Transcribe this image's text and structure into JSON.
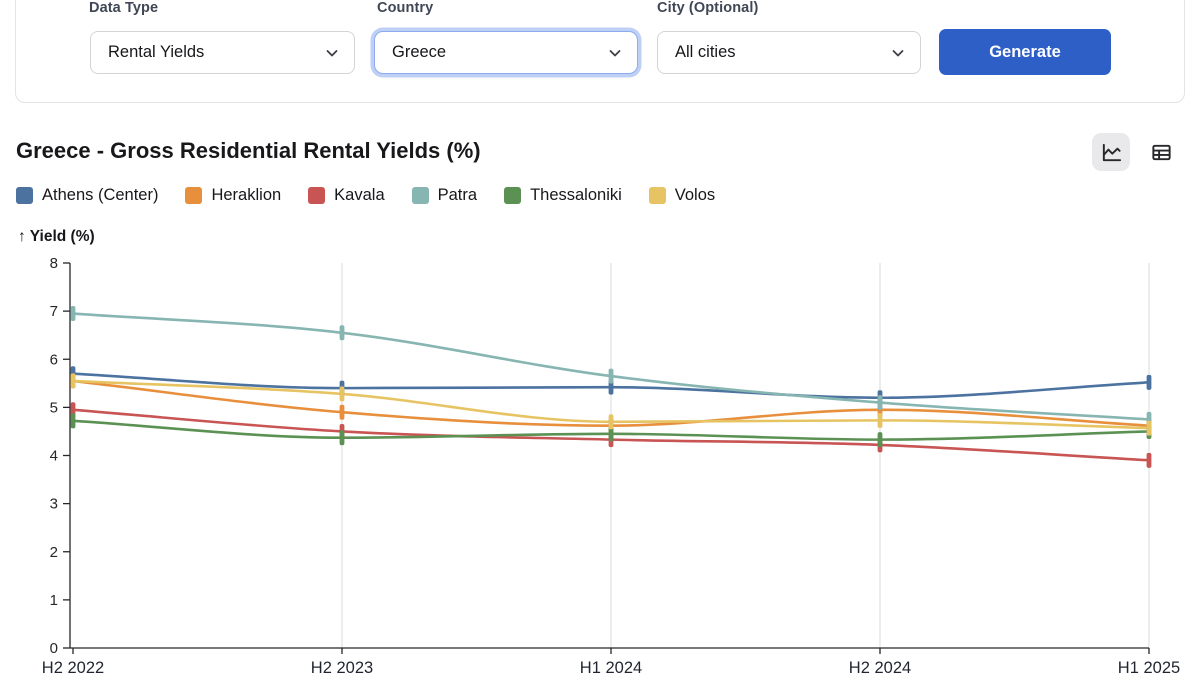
{
  "form": {
    "fields": [
      {
        "label": "Data Type",
        "value": "Rental Yields",
        "focused": false
      },
      {
        "label": "Country",
        "value": "Greece",
        "focused": true
      },
      {
        "label": "City (Optional)",
        "value": "All cities",
        "focused": false
      }
    ],
    "generate_label": "Generate"
  },
  "header": {
    "title": "Greece - Gross Residential Rental Yields (%)",
    "view_toggle": [
      {
        "label": "chart view",
        "icon": "line-chart-icon",
        "active": true
      },
      {
        "label": "table view",
        "icon": "table-icon",
        "active": false
      }
    ]
  },
  "ui_colors": {
    "primary_button": "#2e5fc7",
    "focus_ring": "#bfd0f6",
    "active_toggle_bg": "#e9e9eb",
    "gridline": "#e7e7e7",
    "axis": "#27272a"
  },
  "chart": {
    "ylabel_display": "↑ Yield (%)"
  },
  "chart_data": {
    "type": "line",
    "title": "Greece - Gross Residential Rental Yields (%)",
    "x": [
      "H2 2022",
      "H2 2023",
      "H1 2024",
      "H2 2024",
      "H1 2025"
    ],
    "ylabel": "Yield (%)",
    "ylim": [
      0,
      8
    ],
    "yticks": [
      0,
      1,
      2,
      3,
      4,
      5,
      6,
      7,
      8
    ],
    "grid": "vertical-only",
    "legend_position": "top-left",
    "marker": "vertical-tick",
    "curve": "monotone",
    "series": [
      {
        "name": "Athens (Center)",
        "color": "#4c72a0",
        "values": [
          5.7,
          5.4,
          5.42,
          5.2,
          5.52
        ]
      },
      {
        "name": "Heraklion",
        "color": "#e78f3c",
        "values": [
          5.55,
          4.9,
          4.62,
          4.95,
          4.62
        ]
      },
      {
        "name": "Kavala",
        "color": "#c85454",
        "values": [
          4.95,
          4.5,
          4.33,
          4.22,
          3.9
        ]
      },
      {
        "name": "Patra",
        "color": "#87b5b2",
        "values": [
          6.95,
          6.55,
          5.65,
          5.1,
          4.75
        ]
      },
      {
        "name": "Thessaloniki",
        "color": "#5b9254",
        "values": [
          4.72,
          4.37,
          4.45,
          4.33,
          4.5
        ]
      },
      {
        "name": "Volos",
        "color": "#e7c463",
        "values": [
          5.55,
          5.28,
          4.7,
          4.73,
          4.57
        ]
      }
    ]
  }
}
